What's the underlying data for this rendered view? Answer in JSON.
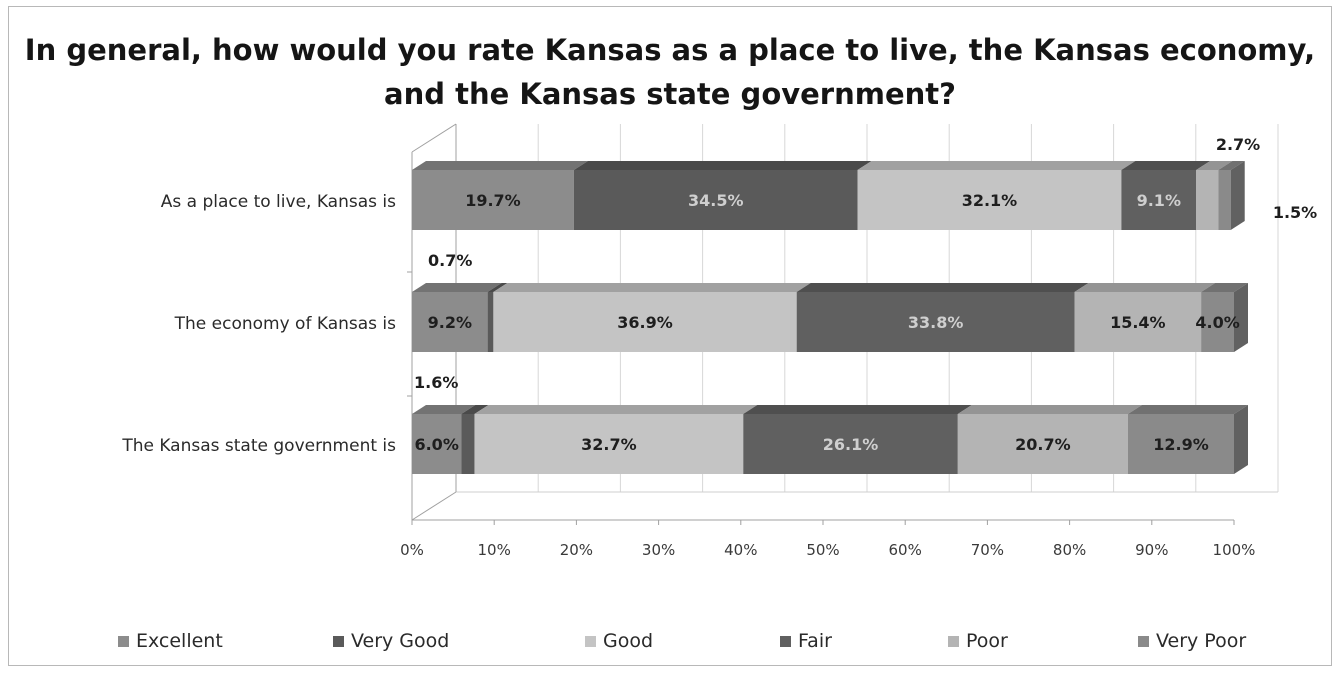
{
  "chart_data": {
    "type": "bar",
    "orientation": "horizontal",
    "stacked": "100%",
    "three_d": true,
    "title": "In general, how would you rate Kansas as a place to live, the Kansas economy, and the Kansas state government?",
    "categories": [
      "As a place to live, Kansas is",
      "The economy of Kansas is",
      "The Kansas state government is"
    ],
    "series": [
      {
        "name": "Excellent",
        "color": "#8c8c8c",
        "text_color": "#1e1e1e",
        "values": [
          19.7,
          9.2,
          6.0
        ],
        "labels": [
          "19.7%",
          "9.2%",
          "6.0%"
        ]
      },
      {
        "name": "Very Good",
        "color": "#5a5a5a",
        "text_color": "#cfcfcf",
        "values": [
          34.5,
          0.7,
          1.6
        ],
        "labels": [
          "34.5%",
          "0.7%",
          "1.6%"
        ]
      },
      {
        "name": "Good",
        "color": "#c4c4c4",
        "text_color": "#1e1e1e",
        "values": [
          32.1,
          36.9,
          32.7
        ],
        "labels": [
          "32.1%",
          "36.9%",
          "32.7%"
        ]
      },
      {
        "name": "Fair",
        "color": "#606060",
        "text_color": "#cfcfcf",
        "values": [
          9.1,
          33.8,
          26.1
        ],
        "labels": [
          "9.1%",
          "33.8%",
          "26.1%"
        ]
      },
      {
        "name": "Poor",
        "color": "#b4b4b4",
        "text_color": "#1e1e1e",
        "values": [
          2.7,
          15.4,
          20.7
        ],
        "labels": [
          "2.7%",
          "15.4%",
          "20.7%"
        ]
      },
      {
        "name": "Very Poor",
        "color": "#8a8a8a",
        "text_color": "#1e1e1e",
        "values": [
          1.5,
          4.0,
          12.9
        ],
        "labels": [
          "1.5%",
          "4.0%",
          "12.9%"
        ]
      }
    ],
    "outside_labels": [
      {
        "category": 0,
        "series": "Poor",
        "text": "2.7%"
      },
      {
        "category": 0,
        "series": "Very Poor",
        "text": "1.5%"
      },
      {
        "category": 1,
        "series": "Very Good",
        "text": "0.7%"
      },
      {
        "category": 2,
        "series": "Very Good",
        "text": "1.6%"
      }
    ],
    "xlim": [
      0,
      100
    ],
    "x_ticks": [
      "0%",
      "10%",
      "20%",
      "30%",
      "40%",
      "50%",
      "60%",
      "70%",
      "80%",
      "90%",
      "100%"
    ],
    "grid": true,
    "legend_position": "bottom"
  }
}
